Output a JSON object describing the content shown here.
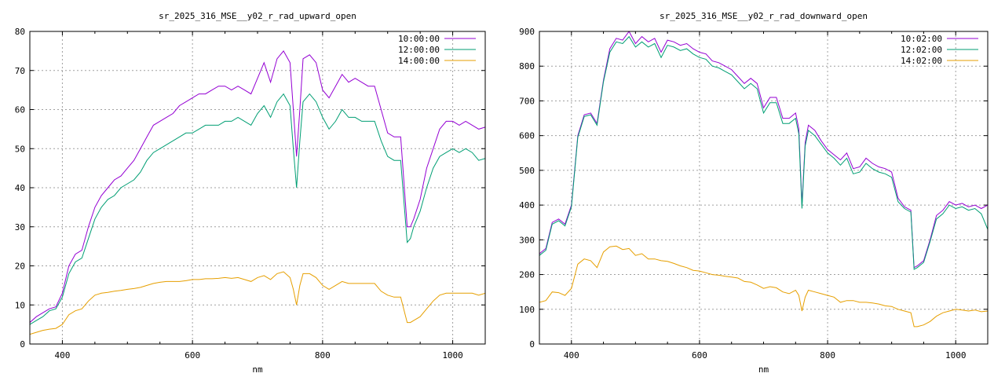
{
  "chart_data": [
    {
      "type": "line",
      "title": "sr_2025_316_MSE__y02_r_rad_upward_open",
      "xlabel": "nm",
      "ylabel": "",
      "xlim": [
        350,
        1050
      ],
      "ylim": [
        0,
        80
      ],
      "xticks": [
        400,
        600,
        800,
        1000
      ],
      "yticks": [
        0,
        10,
        20,
        30,
        40,
        50,
        60,
        70,
        80
      ],
      "grid": true,
      "legend_position": "top-right",
      "series": [
        {
          "name": "10:00:00",
          "color": "#9400d3",
          "x": [
            350,
            360,
            370,
            380,
            390,
            400,
            410,
            420,
            430,
            440,
            450,
            460,
            470,
            480,
            490,
            500,
            510,
            520,
            530,
            540,
            550,
            560,
            570,
            580,
            590,
            600,
            610,
            620,
            630,
            640,
            650,
            660,
            670,
            680,
            690,
            700,
            710,
            720,
            730,
            740,
            750,
            755,
            760,
            765,
            770,
            780,
            790,
            800,
            810,
            820,
            830,
            840,
            850,
            860,
            870,
            880,
            890,
            900,
            910,
            920,
            930,
            935,
            940,
            950,
            960,
            970,
            980,
            990,
            1000,
            1010,
            1020,
            1030,
            1040,
            1050
          ],
          "y": [
            5.5,
            7,
            8,
            9,
            9.5,
            13,
            20,
            23,
            24,
            30,
            35,
            38,
            40,
            42,
            43,
            45,
            47,
            50,
            53,
            56,
            57,
            58,
            59,
            61,
            62,
            63,
            64,
            64,
            65,
            66,
            66,
            65,
            66,
            65,
            64,
            68,
            72,
            67,
            73,
            75,
            72,
            60,
            48,
            60,
            73,
            74,
            72,
            65,
            63,
            66,
            69,
            67,
            68,
            67,
            66,
            66,
            60,
            54,
            53,
            53,
            30,
            30,
            32,
            37,
            45,
            50,
            55,
            57,
            57,
            56,
            57,
            56,
            55,
            55.5
          ]
        },
        {
          "name": "12:00:00",
          "color": "#009e73",
          "x": [
            350,
            360,
            370,
            380,
            390,
            400,
            410,
            420,
            430,
            440,
            450,
            460,
            470,
            480,
            490,
            500,
            510,
            520,
            530,
            540,
            550,
            560,
            570,
            580,
            590,
            600,
            610,
            620,
            630,
            640,
            650,
            660,
            670,
            680,
            690,
            700,
            710,
            720,
            730,
            740,
            750,
            755,
            760,
            765,
            770,
            780,
            790,
            800,
            810,
            820,
            830,
            840,
            850,
            860,
            870,
            880,
            890,
            900,
            910,
            920,
            930,
            935,
            940,
            950,
            960,
            970,
            980,
            990,
            1000,
            1010,
            1020,
            1030,
            1040,
            1050
          ],
          "y": [
            5,
            6,
            7,
            8.5,
            9,
            12,
            18,
            21,
            22,
            27,
            32,
            35,
            37,
            38,
            40,
            41,
            42,
            44,
            47,
            49,
            50,
            51,
            52,
            53,
            54,
            54,
            55,
            56,
            56,
            56,
            57,
            57,
            58,
            57,
            56,
            59,
            61,
            58,
            62,
            64,
            61,
            50,
            40,
            52,
            62,
            64,
            62,
            58,
            55,
            57,
            60,
            58,
            58,
            57,
            57,
            57,
            52,
            48,
            47,
            47,
            26,
            27,
            30,
            34,
            40,
            45,
            48,
            49,
            50,
            49,
            50,
            49,
            47,
            47.5
          ]
        },
        {
          "name": "14:00:00",
          "color": "#e69f00",
          "x": [
            350,
            360,
            370,
            380,
            390,
            400,
            410,
            420,
            430,
            440,
            450,
            460,
            470,
            480,
            490,
            500,
            510,
            520,
            530,
            540,
            550,
            560,
            570,
            580,
            590,
            600,
            610,
            620,
            630,
            640,
            650,
            660,
            670,
            680,
            690,
            700,
            710,
            720,
            730,
            740,
            750,
            755,
            760,
            765,
            770,
            780,
            790,
            800,
            810,
            820,
            830,
            840,
            850,
            860,
            870,
            880,
            890,
            900,
            910,
            920,
            930,
            935,
            940,
            950,
            960,
            970,
            980,
            990,
            1000,
            1010,
            1020,
            1030,
            1040,
            1050
          ],
          "y": [
            2.5,
            3,
            3.5,
            3.8,
            4,
            5,
            7.5,
            8.5,
            9,
            11,
            12.5,
            13,
            13.2,
            13.5,
            13.7,
            14,
            14.2,
            14.5,
            15,
            15.5,
            15.8,
            16,
            16,
            16,
            16.2,
            16.5,
            16.5,
            16.7,
            16.7,
            16.8,
            17,
            16.8,
            17,
            16.5,
            16,
            17,
            17.5,
            16.5,
            18,
            18.5,
            17,
            14,
            10,
            15,
            18,
            18,
            17,
            15,
            14,
            15,
            16,
            15.5,
            15.5,
            15.5,
            15.5,
            15.5,
            13.5,
            12.5,
            12,
            12,
            5.5,
            5.5,
            6,
            7,
            9,
            11,
            12.5,
            13,
            13,
            13,
            13,
            13,
            12.5,
            13
          ]
        }
      ]
    },
    {
      "type": "line",
      "title": "sr_2025_316_MSE__y02_r_rad_downward_open",
      "xlabel": "nm",
      "ylabel": "",
      "xlim": [
        350,
        1050
      ],
      "ylim": [
        0,
        900
      ],
      "xticks": [
        400,
        600,
        800,
        1000
      ],
      "yticks": [
        0,
        100,
        200,
        300,
        400,
        500,
        600,
        700,
        800,
        900
      ],
      "grid": true,
      "legend_position": "top-right",
      "series": [
        {
          "name": "10:02:00",
          "color": "#9400d3",
          "x": [
            350,
            360,
            370,
            380,
            390,
            400,
            410,
            420,
            430,
            440,
            450,
            460,
            470,
            480,
            490,
            500,
            510,
            520,
            530,
            540,
            550,
            560,
            570,
            580,
            590,
            600,
            610,
            620,
            630,
            640,
            650,
            660,
            670,
            680,
            690,
            700,
            710,
            720,
            730,
            740,
            750,
            755,
            760,
            765,
            770,
            780,
            790,
            800,
            810,
            820,
            830,
            840,
            850,
            860,
            870,
            880,
            890,
            900,
            910,
            920,
            930,
            935,
            940,
            950,
            960,
            970,
            980,
            990,
            1000,
            1010,
            1020,
            1030,
            1040,
            1050
          ],
          "y": [
            260,
            275,
            350,
            360,
            345,
            400,
            600,
            660,
            665,
            635,
            760,
            850,
            880,
            875,
            900,
            865,
            885,
            870,
            880,
            840,
            875,
            870,
            860,
            865,
            850,
            840,
            835,
            815,
            810,
            800,
            790,
            770,
            750,
            765,
            750,
            680,
            710,
            710,
            650,
            650,
            665,
            620,
            400,
            580,
            630,
            615,
            585,
            560,
            545,
            530,
            550,
            505,
            510,
            535,
            520,
            510,
            505,
            495,
            420,
            395,
            385,
            220,
            225,
            240,
            300,
            370,
            385,
            410,
            400,
            405,
            395,
            400,
            390,
            400
          ]
        },
        {
          "name": "12:02:00",
          "color": "#009e73",
          "x": [
            350,
            360,
            370,
            380,
            390,
            400,
            410,
            420,
            430,
            440,
            450,
            460,
            470,
            480,
            490,
            500,
            510,
            520,
            530,
            540,
            550,
            560,
            570,
            580,
            590,
            600,
            610,
            620,
            630,
            640,
            650,
            660,
            670,
            680,
            690,
            700,
            710,
            720,
            730,
            740,
            750,
            755,
            760,
            765,
            770,
            780,
            790,
            800,
            810,
            820,
            830,
            840,
            850,
            860,
            870,
            880,
            890,
            900,
            910,
            920,
            930,
            935,
            940,
            950,
            960,
            970,
            980,
            990,
            1000,
            1010,
            1020,
            1030,
            1040,
            1050
          ],
          "y": [
            255,
            270,
            345,
            355,
            340,
            395,
            595,
            655,
            660,
            630,
            755,
            840,
            870,
            865,
            885,
            855,
            870,
            855,
            865,
            825,
            860,
            855,
            845,
            850,
            835,
            825,
            820,
            800,
            795,
            785,
            775,
            755,
            735,
            750,
            735,
            665,
            695,
            695,
            635,
            635,
            650,
            605,
            390,
            570,
            615,
            600,
            575,
            550,
            535,
            515,
            535,
            490,
            495,
            520,
            505,
            495,
            490,
            480,
            410,
            390,
            380,
            215,
            220,
            235,
            295,
            360,
            375,
            400,
            390,
            395,
            385,
            390,
            375,
            330
          ]
        },
        {
          "name": "14:02:00",
          "color": "#e69f00",
          "x": [
            350,
            360,
            370,
            380,
            390,
            400,
            410,
            420,
            430,
            440,
            450,
            460,
            470,
            480,
            490,
            500,
            510,
            520,
            530,
            540,
            550,
            560,
            570,
            580,
            590,
            600,
            610,
            620,
            630,
            640,
            650,
            660,
            670,
            680,
            690,
            700,
            710,
            720,
            730,
            740,
            750,
            755,
            760,
            765,
            770,
            780,
            790,
            800,
            810,
            820,
            830,
            840,
            850,
            860,
            870,
            880,
            890,
            900,
            910,
            920,
            930,
            935,
            940,
            950,
            960,
            970,
            980,
            990,
            1000,
            1010,
            1020,
            1030,
            1040,
            1050
          ],
          "y": [
            120,
            125,
            150,
            148,
            140,
            160,
            230,
            245,
            240,
            220,
            265,
            280,
            282,
            272,
            275,
            255,
            260,
            245,
            245,
            240,
            238,
            232,
            225,
            220,
            212,
            210,
            205,
            200,
            198,
            195,
            193,
            190,
            180,
            178,
            170,
            160,
            165,
            162,
            150,
            145,
            155,
            140,
            95,
            135,
            155,
            150,
            145,
            140,
            135,
            120,
            125,
            125,
            120,
            120,
            118,
            115,
            110,
            108,
            100,
            95,
            90,
            50,
            50,
            55,
            65,
            80,
            90,
            95,
            100,
            98,
            95,
            98,
            93,
            95
          ]
        }
      ]
    }
  ]
}
